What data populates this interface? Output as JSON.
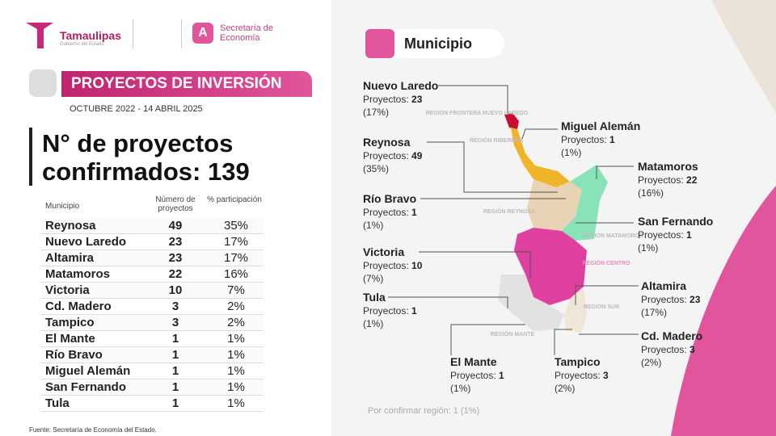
{
  "header": {
    "brand": "Tamaulipas",
    "brand_sub": "Gobierno del Estado",
    "secretaria": "Secretaría de Economía",
    "banner": "PROYECTOS DE INVERSIÓN",
    "period": "OCTUBRE 2022 - 14 ABRIL 2025",
    "headline": "N° de proyectos confirmados:",
    "total": 139
  },
  "table": {
    "columns": [
      "Municipio",
      "Número de proyectos",
      "% participación"
    ],
    "rows": [
      [
        "Reynosa",
        49,
        "35%"
      ],
      [
        "Nuevo Laredo",
        23,
        "17%"
      ],
      [
        "Altamira",
        23,
        "17%"
      ],
      [
        "Matamoros",
        22,
        "16%"
      ],
      [
        "Victoria",
        10,
        "7%"
      ],
      [
        "Cd. Madero",
        3,
        "2%"
      ],
      [
        "Tampico",
        3,
        "2%"
      ],
      [
        "El Mante",
        1,
        "1%"
      ],
      [
        "Río Bravo",
        1,
        "1%"
      ],
      [
        "Miguel Alemán",
        1,
        "1%"
      ],
      [
        "San Fernando",
        1,
        "1%"
      ],
      [
        "Tula",
        1,
        "1%"
      ]
    ]
  },
  "source": "Fuente: Secretaría de Economía del Estado.",
  "map": {
    "title": "Municipio",
    "count_label": "Proyectos:",
    "callouts": [
      {
        "name": "Nuevo Laredo",
        "count": 23,
        "percent": "(17%)"
      },
      {
        "name": "Miguel Alemán",
        "count": 1,
        "percent": "(1%)"
      },
      {
        "name": "Reynosa",
        "count": 49,
        "percent": "(35%)"
      },
      {
        "name": "Matamoros",
        "count": 22,
        "percent": "(16%)"
      },
      {
        "name": "Río Bravo",
        "count": 1,
        "percent": "(1%)"
      },
      {
        "name": "San Fernando",
        "count": 1,
        "percent": "(1%)"
      },
      {
        "name": "Victoria",
        "count": 10,
        "percent": "(7%)"
      },
      {
        "name": "Altamira",
        "count": 23,
        "percent": "(17%)"
      },
      {
        "name": "Tula",
        "count": 1,
        "percent": "(1%)"
      },
      {
        "name": "Cd. Madero",
        "count": 3,
        "percent": "(2%)"
      },
      {
        "name": "El Mante",
        "count": 1,
        "percent": "(1%)"
      },
      {
        "name": "Tampico",
        "count": 3,
        "percent": "(2%)"
      }
    ],
    "regions": [
      "REGIÓN FRONTERA NUEVO LAREDO",
      "REGIÓN RIBEREÑA",
      "REGIÓN REYNOSA",
      "REGIÓN MATAMOROS",
      "REGIÓN CENTRO",
      "REGIÓN MANTE",
      "REGIÓN SUR"
    ],
    "footnote": "Por confirmar región: 1 (1%)"
  }
}
